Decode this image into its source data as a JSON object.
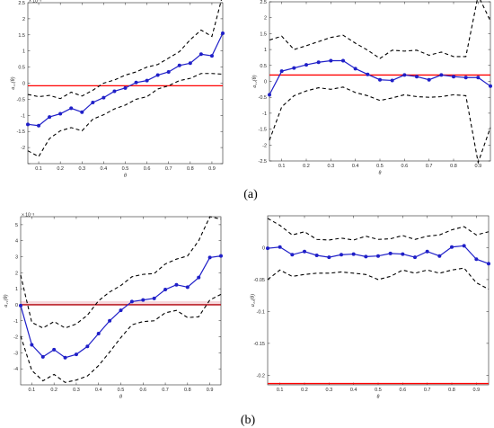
{
  "captions": [
    "(a)",
    "(b)"
  ],
  "colors": {
    "estimate": "#1f1fc8",
    "band": "#000000",
    "reference": "#ff0000",
    "reference_dark": "#b0000a",
    "reference_shade": "#f6d8dc",
    "axis": "#262626"
  },
  "chart_data": [
    {
      "type": "line",
      "panel": "(a) left",
      "xlabel": "θ",
      "ylabel": "a₁₁(θ)",
      "exponent_label": "× 10⁻³",
      "xlim": [
        0.05,
        0.95
      ],
      "ylim": [
        -2.5,
        2.5
      ],
      "x_ticks": [
        0.1,
        0.2,
        0.3,
        0.4,
        0.5,
        0.6,
        0.7,
        0.8,
        0.9
      ],
      "x_tick_labels": [
        "0.1",
        "0.2",
        "0.3",
        "0.4",
        "0.5",
        "0.6",
        "0.7",
        "0.8",
        "0.9"
      ],
      "y_ticks": [
        -2.5,
        -2,
        -1.5,
        -1,
        -0.5,
        0,
        0.5,
        1,
        1.5,
        2,
        2.5
      ],
      "y_tick_labels": [
        "",
        "-2",
        "-1.5",
        "-1",
        "-0.5",
        "0",
        "0.5",
        "1",
        "1.5",
        "2",
        "2.5"
      ],
      "x": [
        0.05,
        0.1,
        0.15,
        0.2,
        0.25,
        0.3,
        0.35,
        0.4,
        0.45,
        0.5,
        0.55,
        0.6,
        0.65,
        0.7,
        0.75,
        0.8,
        0.85,
        0.9,
        0.95
      ],
      "series": [
        {
          "role": "estimate",
          "values": [
            -1.28,
            -1.32,
            -1.05,
            -0.95,
            -0.78,
            -0.9,
            -0.6,
            -0.45,
            -0.25,
            -0.15,
            0.02,
            0.08,
            0.25,
            0.35,
            0.55,
            0.62,
            0.9,
            0.85,
            1.55
          ]
        },
        {
          "role": "upper-band",
          "values": [
            -0.35,
            -0.42,
            -0.38,
            -0.48,
            -0.28,
            -0.4,
            -0.22,
            0.0,
            0.1,
            0.25,
            0.35,
            0.5,
            0.58,
            0.78,
            0.98,
            1.35,
            1.65,
            1.45,
            2.75
          ]
        },
        {
          "role": "lower-band",
          "values": [
            -2.1,
            -2.28,
            -1.72,
            -1.48,
            -1.38,
            -1.48,
            -1.12,
            -0.98,
            -0.8,
            -0.68,
            -0.5,
            -0.42,
            -0.18,
            -0.08,
            0.08,
            0.15,
            0.3,
            0.3,
            0.28
          ]
        }
      ],
      "reference_y": -0.08
    },
    {
      "type": "line",
      "panel": "(a) right",
      "xlabel": "θ",
      "ylabel": "a₁₂(θ)",
      "xlim": [
        0.05,
        0.95
      ],
      "ylim": [
        -2.5,
        2.5
      ],
      "x_ticks": [
        0.1,
        0.2,
        0.3,
        0.4,
        0.5,
        0.6,
        0.7,
        0.8,
        0.9
      ],
      "x_tick_labels": [
        "0.1",
        "0.2",
        "0.3",
        "0.4",
        "0.5",
        "0.6",
        "0.7",
        "0.8",
        "0.9"
      ],
      "y_ticks": [
        -2.5,
        -2,
        -1.5,
        -1,
        -0.5,
        0,
        0.5,
        1,
        1.5,
        2,
        2.5
      ],
      "y_tick_labels": [
        "-2.5",
        "-2",
        "-1.5",
        "-1",
        "-0.5",
        "0",
        "0.5",
        "1",
        "1.5",
        "2",
        "2.5"
      ],
      "x": [
        0.05,
        0.1,
        0.15,
        0.2,
        0.25,
        0.3,
        0.35,
        0.4,
        0.45,
        0.5,
        0.55,
        0.6,
        0.65,
        0.7,
        0.75,
        0.8,
        0.85,
        0.9,
        0.95
      ],
      "series": [
        {
          "role": "estimate",
          "values": [
            -0.42,
            0.32,
            0.42,
            0.52,
            0.6,
            0.65,
            0.65,
            0.4,
            0.22,
            0.05,
            0.03,
            0.2,
            0.15,
            0.05,
            0.2,
            0.15,
            0.12,
            0.12,
            -0.15
          ]
        },
        {
          "role": "upper-band",
          "values": [
            1.3,
            1.42,
            1.0,
            1.12,
            1.25,
            1.38,
            1.45,
            1.2,
            0.98,
            0.72,
            0.98,
            0.95,
            0.98,
            0.82,
            0.92,
            0.78,
            0.78,
            2.7,
            1.9
          ]
        },
        {
          "role": "lower-band",
          "values": [
            -1.85,
            -0.8,
            -0.45,
            -0.3,
            -0.2,
            -0.25,
            -0.18,
            -0.35,
            -0.45,
            -0.6,
            -0.52,
            -0.42,
            -0.48,
            -0.5,
            -0.48,
            -0.42,
            -0.45,
            -2.55,
            -1.45
          ]
        }
      ],
      "reference_y": 0.2
    },
    {
      "type": "line",
      "panel": "(b) left",
      "xlabel": "θ",
      "ylabel": "a₂₁(θ)",
      "exponent_label": "× 10⁻³",
      "xlim": [
        0.05,
        0.95
      ],
      "ylim": [
        -5,
        5.5
      ],
      "x_ticks": [
        0.1,
        0.2,
        0.3,
        0.4,
        0.5,
        0.6,
        0.7,
        0.8,
        0.9
      ],
      "x_tick_labels": [
        "0.1",
        "0.2",
        "0.3",
        "0.4",
        "0.5",
        "0.6",
        "0.7",
        "0.8",
        "0.9"
      ],
      "y_ticks": [
        -4,
        -3,
        -2,
        -1,
        0,
        1,
        2,
        3,
        4,
        5
      ],
      "y_tick_labels": [
        "-4",
        "-3",
        "-2",
        "-1",
        "0",
        "1",
        "2",
        "3",
        "4",
        "5"
      ],
      "x": [
        0.05,
        0.1,
        0.15,
        0.2,
        0.25,
        0.3,
        0.35,
        0.4,
        0.45,
        0.5,
        0.55,
        0.6,
        0.65,
        0.7,
        0.75,
        0.8,
        0.85,
        0.9,
        0.95
      ],
      "series": [
        {
          "role": "estimate",
          "values": [
            -0.05,
            -2.5,
            -3.25,
            -2.8,
            -3.3,
            -3.1,
            -2.6,
            -1.8,
            -1.0,
            -0.35,
            0.2,
            0.3,
            0.4,
            0.95,
            1.25,
            1.1,
            1.7,
            2.95,
            3.05
          ]
        },
        {
          "role": "upper-band",
          "values": [
            1.85,
            -1.1,
            -1.45,
            -1.05,
            -1.45,
            -1.2,
            -0.65,
            0.25,
            0.8,
            1.2,
            1.75,
            1.9,
            1.95,
            2.55,
            2.85,
            3.05,
            4.0,
            5.5,
            5.35
          ]
        },
        {
          "role": "lower-band",
          "values": [
            -1.95,
            -4.1,
            -4.75,
            -4.35,
            -4.85,
            -4.7,
            -4.45,
            -3.8,
            -2.95,
            -2.05,
            -1.25,
            -1.05,
            -1.0,
            -0.5,
            -0.35,
            -0.8,
            -0.75,
            0.3,
            0.65
          ]
        }
      ],
      "reference_y": 0.0
    },
    {
      "type": "line",
      "panel": "(b) right",
      "xlabel": "θ",
      "ylabel": "a₂₂(θ)",
      "xlim": [
        0.05,
        0.95
      ],
      "ylim": [
        -0.215,
        0.05
      ],
      "x_ticks": [
        0.1,
        0.2,
        0.3,
        0.4,
        0.5,
        0.6,
        0.7,
        0.8,
        0.9
      ],
      "x_tick_labels": [
        "0.1",
        "0.2",
        "0.3",
        "0.4",
        "0.5",
        "0.6",
        "0.7",
        "0.8",
        "0.9"
      ],
      "y_ticks": [
        -0.2,
        -0.15,
        -0.1,
        -0.05,
        0
      ],
      "y_tick_labels": [
        "-0.2",
        "-0.15",
        "-0.1",
        "-0.05",
        "0"
      ],
      "x": [
        0.05,
        0.1,
        0.15,
        0.2,
        0.25,
        0.3,
        0.35,
        0.4,
        0.45,
        0.5,
        0.55,
        0.6,
        0.65,
        0.7,
        0.75,
        0.8,
        0.85,
        0.9,
        0.95
      ],
      "series": [
        {
          "role": "estimate",
          "values": [
            -0.001,
            0.001,
            -0.011,
            -0.006,
            -0.012,
            -0.015,
            -0.011,
            -0.01,
            -0.014,
            -0.013,
            -0.009,
            -0.01,
            -0.015,
            -0.006,
            -0.013,
            0.001,
            0.003,
            -0.018,
            -0.025
          ]
        },
        {
          "role": "upper-band",
          "values": [
            0.046,
            0.035,
            0.02,
            0.025,
            0.013,
            0.012,
            0.015,
            0.012,
            0.018,
            0.013,
            0.014,
            0.019,
            0.013,
            0.018,
            0.02,
            0.028,
            0.033,
            0.02,
            0.025
          ]
        },
        {
          "role": "lower-band",
          "values": [
            -0.05,
            -0.035,
            -0.045,
            -0.042,
            -0.04,
            -0.04,
            -0.038,
            -0.04,
            -0.042,
            -0.05,
            -0.045,
            -0.035,
            -0.04,
            -0.035,
            -0.04,
            -0.035,
            -0.032,
            -0.055,
            -0.065
          ]
        }
      ],
      "reference_y": -0.213
    }
  ]
}
